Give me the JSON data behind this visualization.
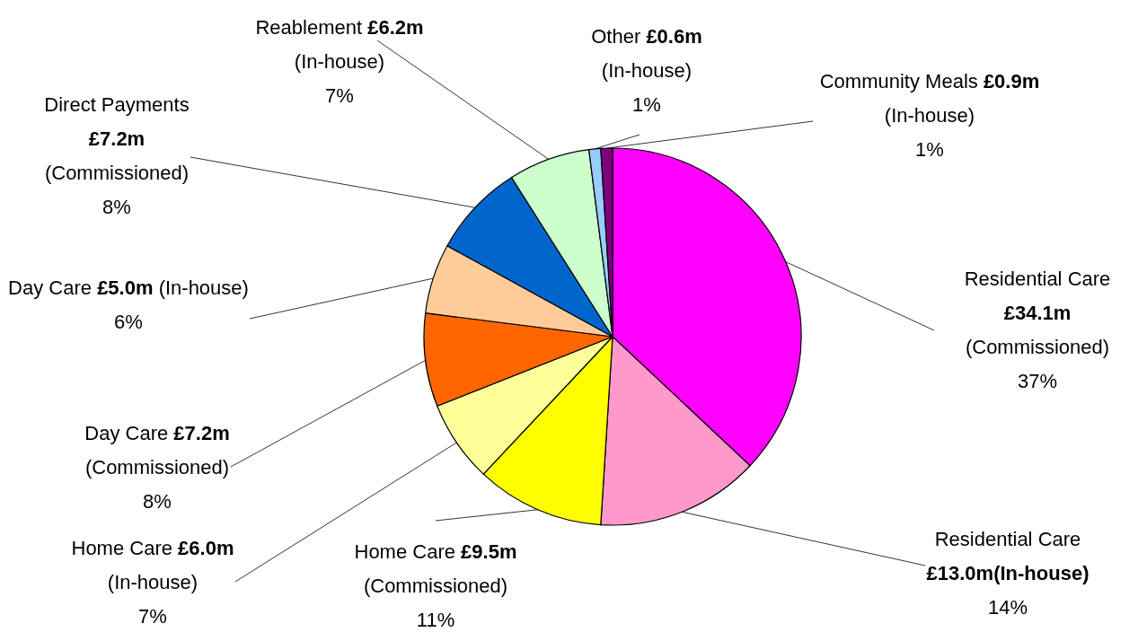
{
  "chart_data": {
    "type": "pie",
    "categories": [
      "Residential Care £34.1m (Commissioned)",
      "Residential Care £13.0m(In-house)",
      "Home Care £9.5m (Commissioned)",
      "Home Care £6.0m (In-house)",
      "Day Care £7.2m (Commissioned)",
      "Day Care £5.0m (In-house)",
      "Direct Payments £7.2m (Commissioned)",
      "Reablement £6.2m (In-house)",
      "Other £0.6m (In-house)",
      "Community Meals £0.9m (In-house)"
    ],
    "values": [
      37,
      14,
      11,
      7,
      8,
      6,
      8,
      7,
      1,
      1
    ],
    "value_labels": [
      "37%",
      "14%",
      "11%",
      "7%",
      "8%",
      "6%",
      "8%",
      "7%",
      "1%",
      "1%"
    ],
    "colors": [
      "#ff00ff",
      "#ff99cc",
      "#ffff00",
      "#ffff99",
      "#ff6600",
      "#ffcc99",
      "#0066cc",
      "#ccffcc",
      "#99ccff",
      "#800080"
    ]
  }
}
